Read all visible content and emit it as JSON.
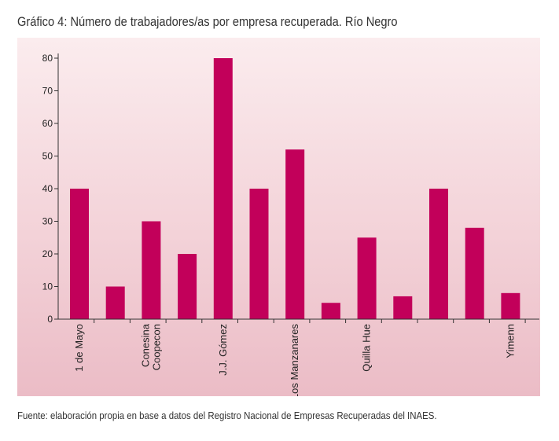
{
  "title": "Gráfico 4: Número de trabajadores/as por empresa recuperada. Río Negro",
  "source": "Fuente: elaboración propia en base a datos del Registro Nacional de Empresas Recuperadas del INAES.",
  "colors": {
    "bar": "#c2005a",
    "panel_top": "#fbecee",
    "panel_bottom": "#ebbcc6"
  },
  "chart_data": {
    "type": "bar",
    "categories": [
      "1 de Mayo",
      "",
      "Conesina\nCoopecon",
      "",
      "J.J. Gómez",
      "",
      "Los Manzanares",
      "",
      "Quilla Hue",
      "",
      "",
      "",
      "Yimenn"
    ],
    "values": [
      40,
      10,
      30,
      20,
      80,
      40,
      52,
      5,
      25,
      7,
      40,
      28,
      8
    ],
    "yticks": [
      0,
      10,
      20,
      30,
      40,
      50,
      60,
      70,
      80
    ],
    "ylim": [
      0,
      80
    ],
    "xlabel": "",
    "ylabel": "",
    "grid": false,
    "legend": "none"
  }
}
